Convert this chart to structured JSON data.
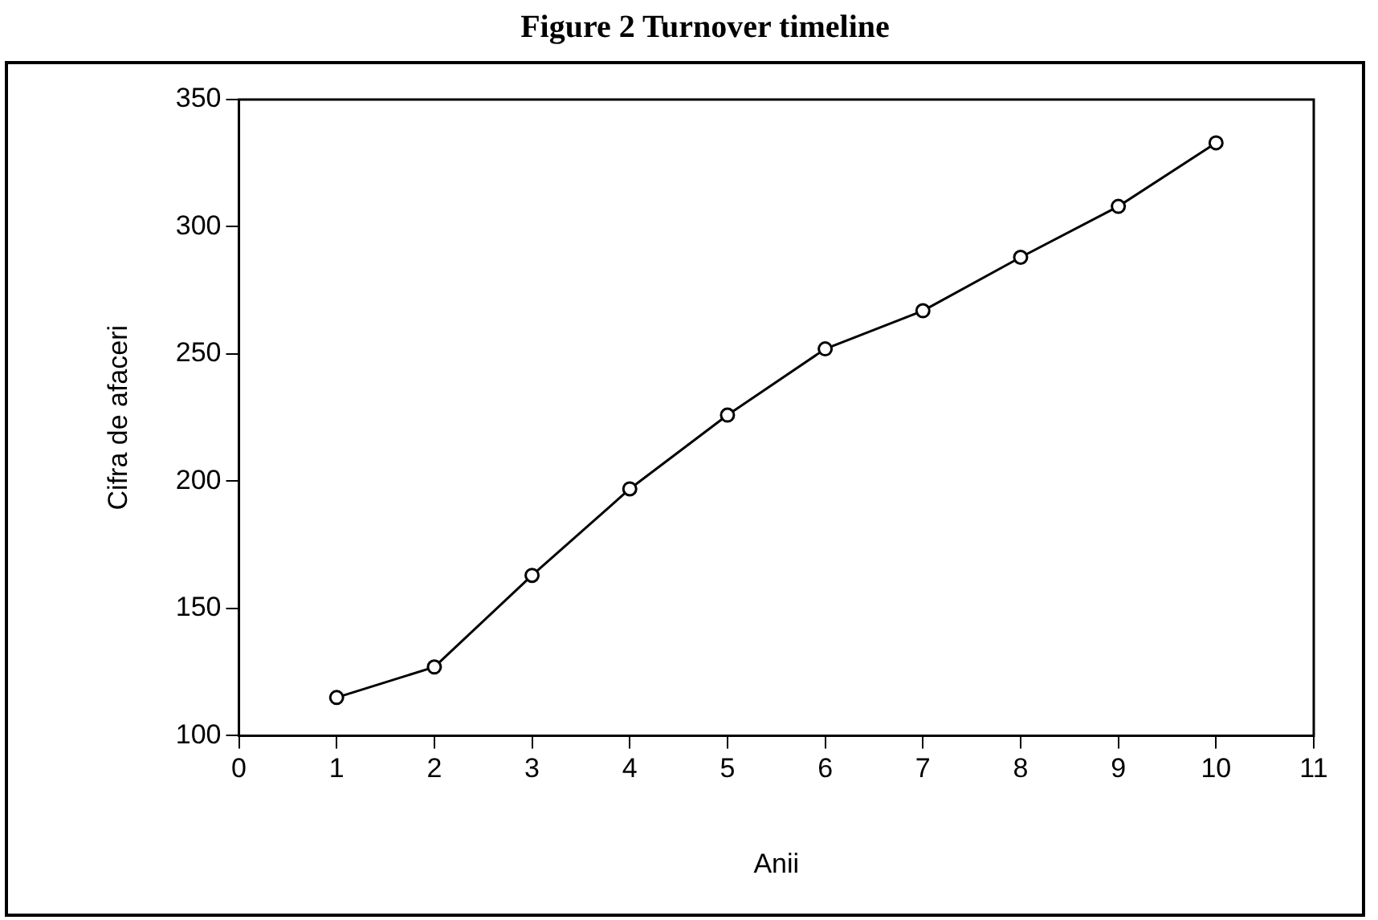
{
  "chart_data": {
    "type": "line",
    "title": "Figure 2 Turnover timeline",
    "xlabel": "Anii",
    "ylabel": "Cifra de afaceri",
    "x": [
      1,
      2,
      3,
      4,
      5,
      6,
      7,
      8,
      9,
      10
    ],
    "series": [
      {
        "color": "#000000",
        "values": [
          115,
          127,
          163,
          197,
          226,
          252,
          267,
          288,
          308,
          333
        ]
      }
    ],
    "xlim": [
      0,
      11
    ],
    "xticks": [
      0,
      1,
      2,
      3,
      4,
      5,
      6,
      7,
      8,
      9,
      10,
      11
    ],
    "ylim": [
      100,
      350
    ],
    "yticks": [
      100,
      150,
      200,
      250,
      300,
      350
    ],
    "grid": false,
    "legend": false,
    "marker": "circle",
    "line_style": "solid"
  }
}
